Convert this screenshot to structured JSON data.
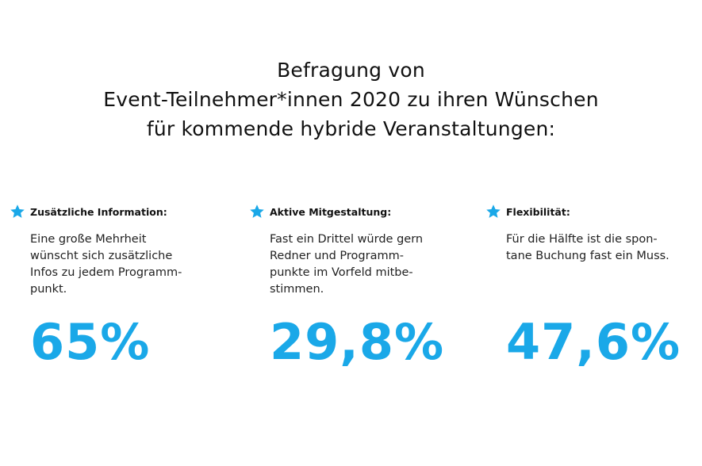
{
  "title": {
    "line1": "Befragung von",
    "line2": "Event-Teilnehmer*innen 2020 zu ihren Wünschen",
    "line3": "für kommende hybride Veranstaltungen:"
  },
  "columns": [
    {
      "icon": "star-icon",
      "heading": "Zusätzliche Information:",
      "description": "Eine große Mehrheit\nwünscht sich zusätzliche\nInfos zu jedem Programm-\npunkt.",
      "stat": "65%"
    },
    {
      "icon": "star-icon",
      "heading": "Aktive Mitgestaltung:",
      "description": "Fast ein Drittel würde gern\nRedner und Programm-\npunkte im Vorfeld mitbe-\nstimmen.",
      "stat": "29,8%"
    },
    {
      "icon": "star-icon",
      "heading": "Flexibilität:",
      "description": "Für die Hälfte ist die spon-\ntane Buchung fast ein Muss.",
      "stat": "47,6%"
    }
  ],
  "colors": {
    "accent": "#1aa8e8",
    "text": "#111111",
    "background": "#ffffff"
  }
}
